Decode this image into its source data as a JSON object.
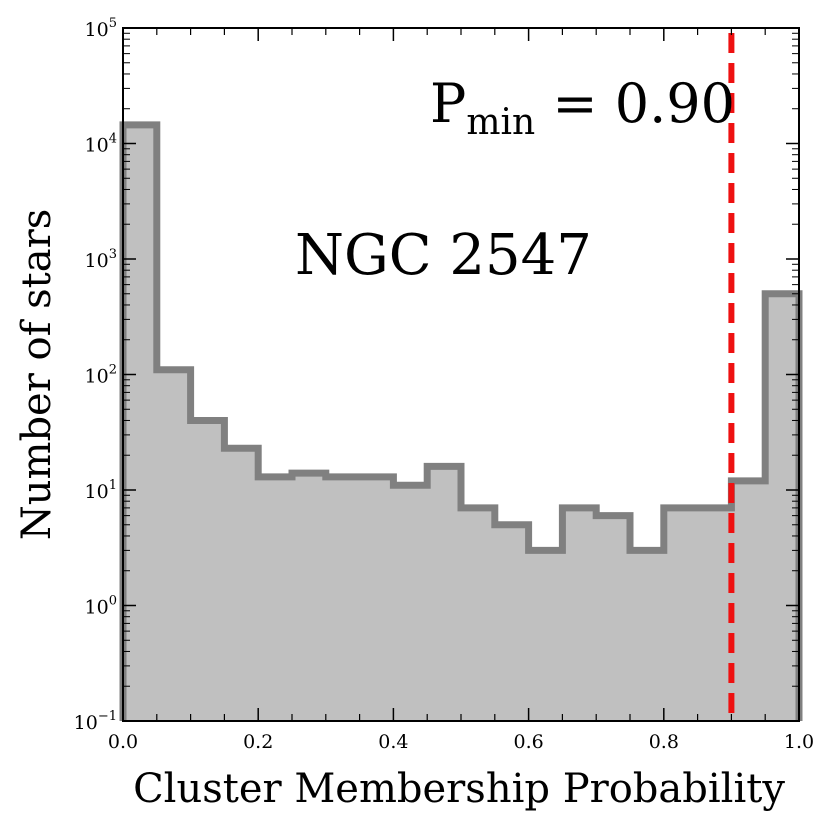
{
  "chart_data": {
    "type": "bar",
    "title": "",
    "xlabel": "Cluster Membership Probability",
    "ylabel": "Number of stars",
    "xlim": [
      0.0,
      1.0
    ],
    "ylim_log10": [
      -1,
      5
    ],
    "yscale": "log",
    "grid": false,
    "bin_width": 0.05,
    "bin_edges": [
      0.0,
      0.05,
      0.1,
      0.15,
      0.2,
      0.25,
      0.3,
      0.35,
      0.4,
      0.45,
      0.5,
      0.55,
      0.6,
      0.65,
      0.7,
      0.75,
      0.8,
      0.85,
      0.9,
      0.95,
      1.0
    ],
    "counts": [
      14500,
      110,
      40,
      23,
      13,
      14,
      13,
      13,
      11,
      16,
      7,
      5,
      3,
      7,
      6,
      3,
      7,
      7,
      12,
      500
    ],
    "x_ticks": [
      0.0,
      0.2,
      0.4,
      0.6,
      0.8,
      1.0
    ],
    "x_tick_labels": [
      "0.0",
      "0.2",
      "0.4",
      "0.6",
      "0.8",
      "1.0"
    ],
    "y_tick_exponents": [
      -1,
      0,
      1,
      2,
      3,
      4,
      5
    ],
    "y_tick_labels": [
      {
        "base": "10",
        "exp": "−1"
      },
      {
        "base": "10",
        "exp": "0"
      },
      {
        "base": "10",
        "exp": "1"
      },
      {
        "base": "10",
        "exp": "2"
      },
      {
        "base": "10",
        "exp": "3"
      },
      {
        "base": "10",
        "exp": "4"
      },
      {
        "base": "10",
        "exp": "5"
      }
    ],
    "threshold": {
      "x": 0.9,
      "label_main": "P",
      "label_sub": "min",
      "label_rest": " = 0.90"
    },
    "annotation": "NGC 2547",
    "colors": {
      "fill": "#c0c0c0",
      "edge": "#808080",
      "threshold": "#ee1111",
      "threshold_text": "#ee1111",
      "axis": "#000000"
    }
  }
}
